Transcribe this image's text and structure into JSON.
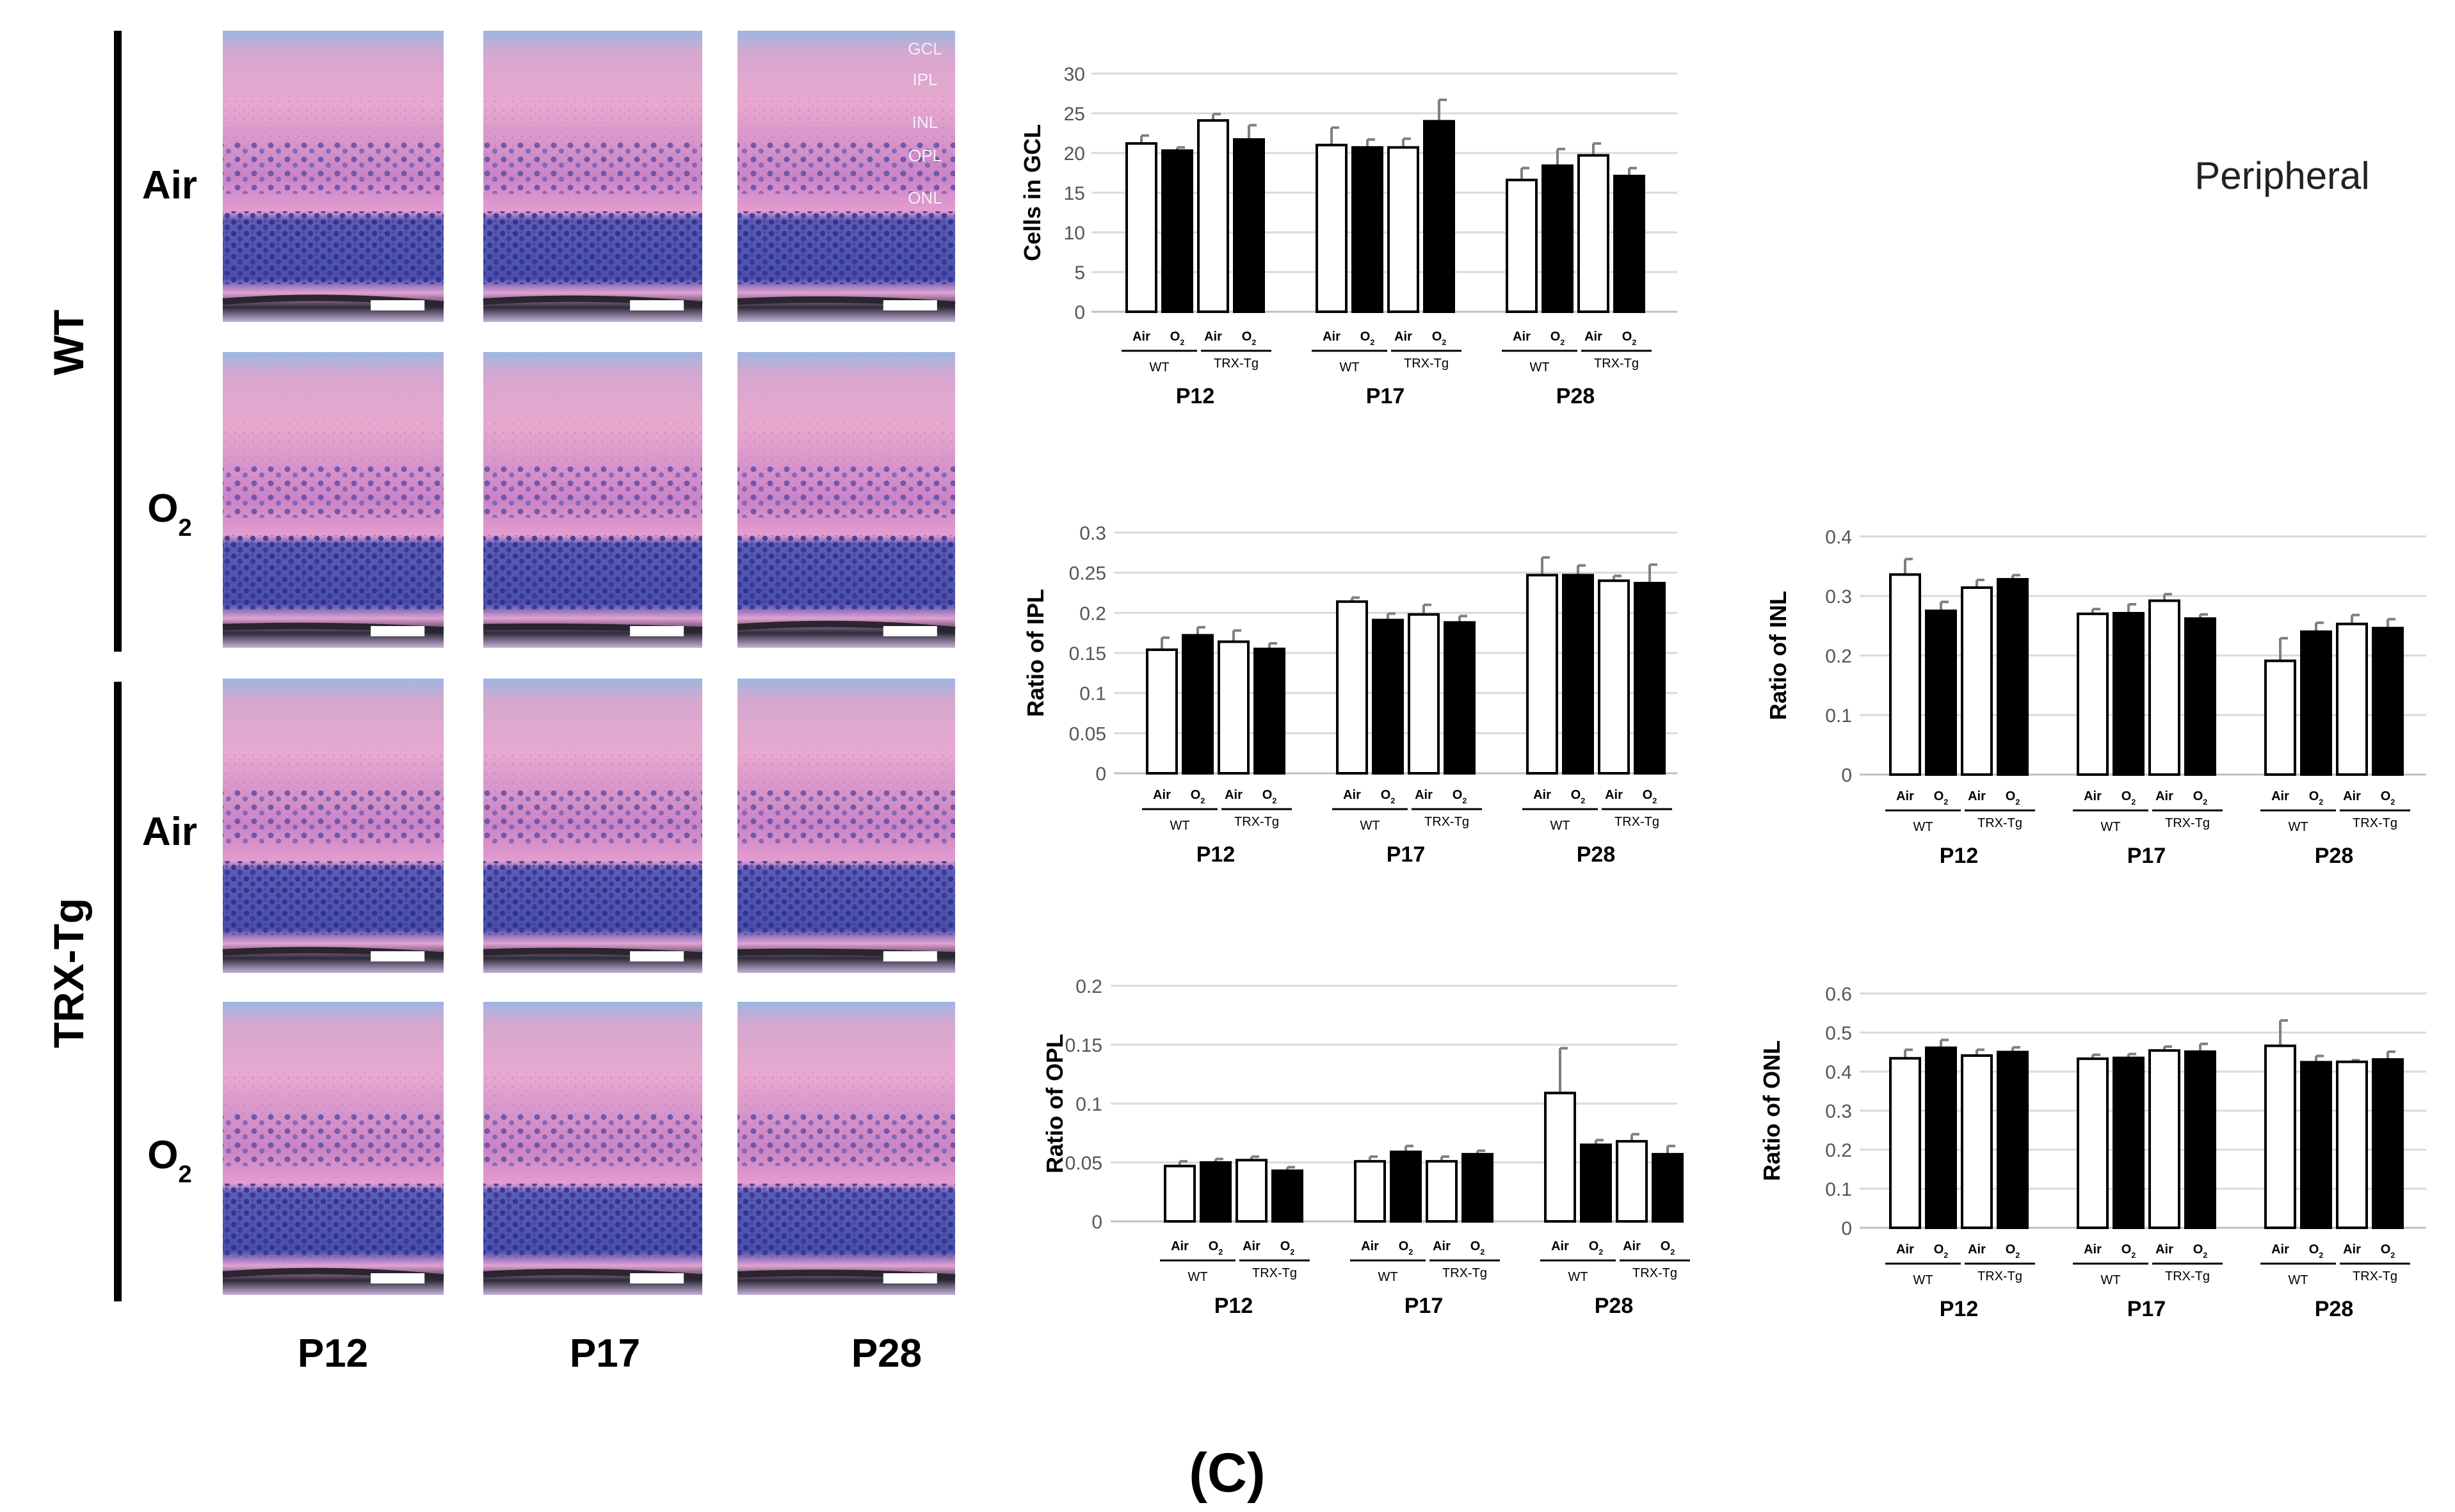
{
  "figure_label": "(C)",
  "region_label": "Peripheral",
  "histology": {
    "groups": [
      {
        "name": "WT",
        "rows": [
          "Air",
          "O2"
        ]
      },
      {
        "name": "TRX-Tg",
        "rows": [
          "Air",
          "O2"
        ]
      }
    ],
    "row_labels": [
      {
        "base": "Air",
        "sub": ""
      },
      {
        "base": "O",
        "sub": "2"
      },
      {
        "base": "Air",
        "sub": ""
      },
      {
        "base": "O",
        "sub": "2"
      }
    ],
    "columns": [
      "P12",
      "P17",
      "P28"
    ],
    "layer_labels": [
      "GCL",
      "IPL",
      "INL",
      "OPL",
      "ONL"
    ]
  },
  "chart_data": [
    {
      "id": "gcl",
      "type": "bar",
      "title": "",
      "xlabel": "",
      "ylabel": "Cells in GCL",
      "ylim": [
        0,
        30
      ],
      "yticks": [
        "0",
        "5",
        "10",
        "15",
        "20",
        "25",
        "30"
      ],
      "groups": [
        "P12",
        "P17",
        "P28"
      ],
      "bar_labels": [
        "Air",
        "O2",
        "Air",
        "O2"
      ],
      "genotypes": [
        "WT",
        "TRX-Tg"
      ],
      "series": [
        {
          "name": "WT Air",
          "values": [
            21.2,
            21.0,
            16.6
          ],
          "errors": [
            1.0,
            2.2,
            1.5
          ]
        },
        {
          "name": "WT O2",
          "values": [
            20.3,
            20.7,
            18.4
          ],
          "errors": [
            0.4,
            1.0,
            2.1
          ]
        },
        {
          "name": "TRX-Tg Air",
          "values": [
            24.1,
            20.7,
            19.7
          ],
          "errors": [
            0.8,
            1.1,
            1.5
          ]
        },
        {
          "name": "TRX-Tg O2",
          "values": [
            21.7,
            24.0,
            17.1
          ],
          "errors": [
            1.8,
            2.7,
            1.0
          ]
        }
      ]
    },
    {
      "id": "ipl",
      "type": "bar",
      "title": "",
      "xlabel": "",
      "ylabel": "Ratio of IPL",
      "ylim": [
        0,
        0.3
      ],
      "yticks": [
        "0",
        "0.05",
        "0.1",
        "0.15",
        "0.2",
        "0.25",
        "0.3"
      ],
      "groups": [
        "P12",
        "P17",
        "P28"
      ],
      "bar_labels": [
        "Air",
        "O2",
        "Air",
        "O2"
      ],
      "genotypes": [
        "WT",
        "TRX-Tg"
      ],
      "series": [
        {
          "name": "WT Air",
          "values": [
            0.154,
            0.214,
            0.247
          ],
          "errors": [
            0.015,
            0.005,
            0.022
          ]
        },
        {
          "name": "WT O2",
          "values": [
            0.172,
            0.191,
            0.247
          ],
          "errors": [
            0.01,
            0.008,
            0.012
          ]
        },
        {
          "name": "TRX-Tg Air",
          "values": [
            0.164,
            0.198,
            0.24
          ],
          "errors": [
            0.014,
            0.012,
            0.006
          ]
        },
        {
          "name": "TRX-Tg O2",
          "values": [
            0.155,
            0.188,
            0.237
          ],
          "errors": [
            0.007,
            0.008,
            0.023
          ]
        }
      ]
    },
    {
      "id": "inl",
      "type": "bar",
      "title": "",
      "xlabel": "",
      "ylabel": "Ratio of INL",
      "ylim": [
        0,
        0.4
      ],
      "yticks": [
        "0",
        "0.1",
        "0.2",
        "0.3",
        "0.4"
      ],
      "groups": [
        "P12",
        "P17",
        "P28"
      ],
      "bar_labels": [
        "Air",
        "O2",
        "Air",
        "O2"
      ],
      "genotypes": [
        "WT",
        "TRX-Tg"
      ],
      "series": [
        {
          "name": "WT Air",
          "values": [
            0.336,
            0.27,
            0.191
          ],
          "errors": [
            0.026,
            0.008,
            0.038
          ]
        },
        {
          "name": "WT O2",
          "values": [
            0.275,
            0.271,
            0.24
          ],
          "errors": [
            0.015,
            0.015,
            0.015
          ]
        },
        {
          "name": "TRX-Tg Air",
          "values": [
            0.314,
            0.292,
            0.253
          ],
          "errors": [
            0.013,
            0.011,
            0.015
          ]
        },
        {
          "name": "TRX-Tg O2",
          "values": [
            0.328,
            0.262,
            0.246
          ],
          "errors": [
            0.007,
            0.007,
            0.015
          ]
        }
      ]
    },
    {
      "id": "opl",
      "type": "bar",
      "title": "",
      "xlabel": "",
      "ylabel": "Ratio of OPL",
      "ylim": [
        0,
        0.2
      ],
      "yticks": [
        "0",
        "0.05",
        "0.1",
        "0.15",
        "0.2"
      ],
      "groups": [
        "P12",
        "P17",
        "P28"
      ],
      "bar_labels": [
        "Air",
        "O2",
        "Air",
        "O2"
      ],
      "genotypes": [
        "WT",
        "TRX-Tg"
      ],
      "series": [
        {
          "name": "WT Air",
          "values": [
            0.047,
            0.051,
            0.109
          ],
          "errors": [
            0.004,
            0.004,
            0.038
          ]
        },
        {
          "name": "WT O2",
          "values": [
            0.05,
            0.059,
            0.065
          ],
          "errors": [
            0.003,
            0.005,
            0.004
          ]
        },
        {
          "name": "TRX-Tg Air",
          "values": [
            0.052,
            0.051,
            0.068
          ],
          "errors": [
            0.003,
            0.004,
            0.006
          ]
        },
        {
          "name": "TRX-Tg O2",
          "values": [
            0.043,
            0.057,
            0.057
          ],
          "errors": [
            0.003,
            0.003,
            0.007
          ]
        }
      ]
    },
    {
      "id": "onl",
      "type": "bar",
      "title": "",
      "xlabel": "",
      "ylabel": "Ratio of ONL",
      "ylim": [
        0,
        0.6
      ],
      "yticks": [
        "0",
        "0.1",
        "0.2",
        "0.3",
        "0.4",
        "0.5",
        "0.6"
      ],
      "groups": [
        "P12",
        "P17",
        "P28"
      ],
      "bar_labels": [
        "Air",
        "O2",
        "Air",
        "O2"
      ],
      "genotypes": [
        "WT",
        "TRX-Tg"
      ],
      "series": [
        {
          "name": "WT Air",
          "values": [
            0.434,
            0.433,
            0.466
          ],
          "errors": [
            0.022,
            0.01,
            0.065
          ]
        },
        {
          "name": "WT O2",
          "values": [
            0.461,
            0.435,
            0.424
          ],
          "errors": [
            0.02,
            0.01,
            0.016
          ]
        },
        {
          "name": "TRX-Tg Air",
          "values": [
            0.441,
            0.454,
            0.425
          ],
          "errors": [
            0.015,
            0.01,
            0.004
          ]
        },
        {
          "name": "TRX-Tg O2",
          "values": [
            0.45,
            0.451,
            0.431
          ],
          "errors": [
            0.012,
            0.02,
            0.02
          ]
        }
      ]
    }
  ]
}
